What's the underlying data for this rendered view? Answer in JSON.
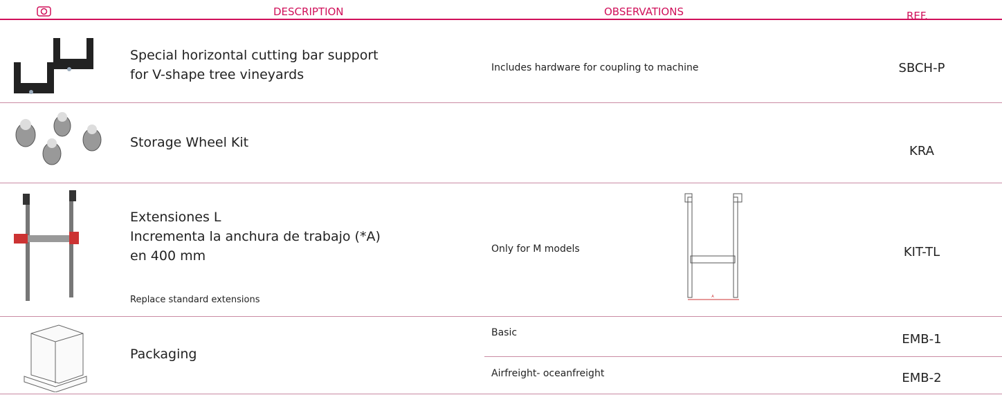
{
  "header": {
    "description": "DESCRIPTION",
    "observations": "OBSERVATIONS",
    "ref": "REF."
  },
  "rows": [
    {
      "description": [
        "Special horizontal cutting bar support",
        "for V-shape tree vineyards"
      ],
      "observation": "Includes hardware for coupling to machine",
      "ref": "SBCH-P"
    },
    {
      "description": [
        "Storage Wheel Kit"
      ],
      "ref": "KRA"
    },
    {
      "description": [
        "Extensiones L",
        "Incrementa la anchura de trabajo (*A)",
        "en 400 mm"
      ],
      "note": "Replace standard extensions",
      "observation": "Only for M models",
      "diagram_label": "A",
      "ref": "KIT-TL"
    },
    {
      "description": [
        "Packaging"
      ],
      "options": [
        {
          "observation": "Basic",
          "ref": "EMB-1"
        },
        {
          "observation": "Airfreight- oceanfreight",
          "ref": "EMB-2"
        }
      ]
    }
  ]
}
